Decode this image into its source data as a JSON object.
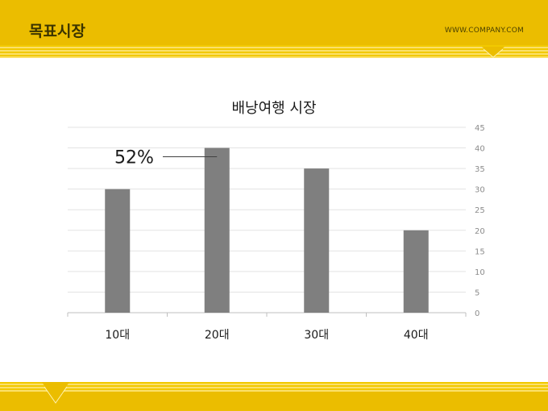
{
  "header": {
    "title": "목표시장",
    "company": "WWW.COMPANY.COM"
  },
  "colors": {
    "accent": "#ebbd00",
    "bar": "#7f7f7f"
  },
  "chart_data": {
    "type": "bar",
    "title": "배낭여행 시장",
    "categories": [
      "10대",
      "20대",
      "30대",
      "40대"
    ],
    "values": [
      30,
      40,
      35,
      20
    ],
    "ylim": [
      0,
      45
    ],
    "yticks": [
      0,
      5,
      10,
      15,
      20,
      25,
      30,
      35,
      40,
      45
    ],
    "y_axis_side": "right",
    "grid": true,
    "annotation": {
      "text": "52%",
      "target_category": "20대"
    }
  }
}
